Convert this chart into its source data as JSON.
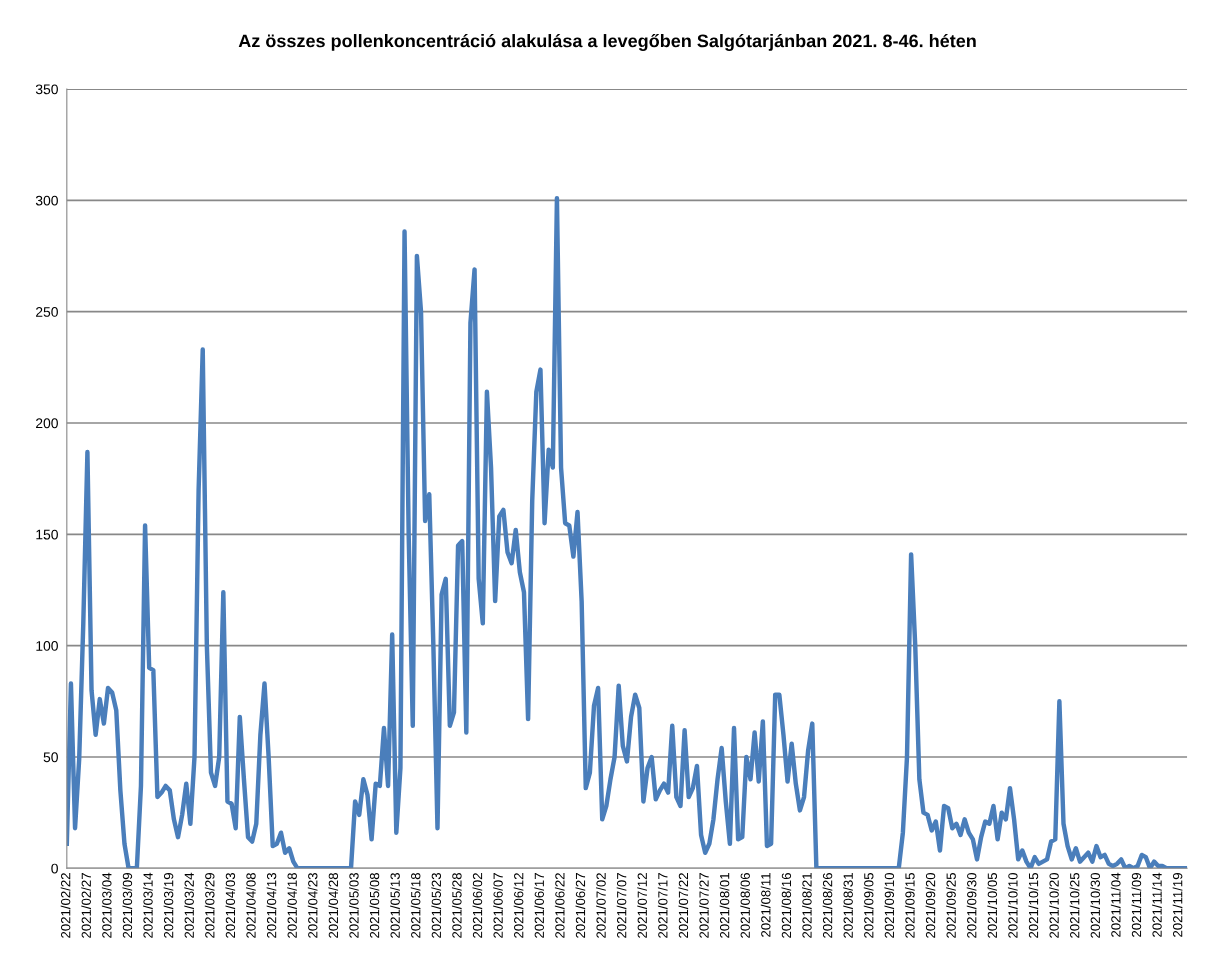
{
  "chart_data": {
    "type": "line",
    "title": "Az összes pollenkoncentráció alakulása a levegőben Salgótarjánban 2021. 8-46. héten",
    "xlim": [
      "2021-02-22",
      "2021-11-21"
    ],
    "ylim": [
      0,
      350
    ],
    "yticks": [
      0,
      50,
      100,
      150,
      200,
      250,
      300,
      350
    ],
    "grid": "y",
    "legend": false,
    "marker": "none",
    "line_style": "solid",
    "xticks": [
      {
        "value": "2021-02-22",
        "label": "2021/02/22"
      },
      {
        "value": "2021-02-27",
        "label": "2021/02/27"
      },
      {
        "value": "2021-03-04",
        "label": "2021/03/04"
      },
      {
        "value": "2021-03-09",
        "label": "2021/03/09"
      },
      {
        "value": "2021-03-14",
        "label": "2021/03/14"
      },
      {
        "value": "2021-03-19",
        "label": "2021/03/19"
      },
      {
        "value": "2021-03-24",
        "label": "2021/03/24"
      },
      {
        "value": "2021-03-29",
        "label": "2021/03/29"
      },
      {
        "value": "2021-04-03",
        "label": "2021/04/03"
      },
      {
        "value": "2021-04-08",
        "label": "2021/04/08"
      },
      {
        "value": "2021-04-13",
        "label": "2021/04/13"
      },
      {
        "value": "2021-04-18",
        "label": "2021/04/18"
      },
      {
        "value": "2021-04-23",
        "label": "2021/04/23"
      },
      {
        "value": "2021-04-28",
        "label": "2021/04/28"
      },
      {
        "value": "2021-05-03",
        "label": "2021/05/03"
      },
      {
        "value": "2021-05-08",
        "label": "2021/05/08"
      },
      {
        "value": "2021-05-13",
        "label": "2021/05/13"
      },
      {
        "value": "2021-05-18",
        "label": "2021/05/18"
      },
      {
        "value": "2021-05-23",
        "label": "2021/05/23"
      },
      {
        "value": "2021-05-28",
        "label": "2021/05/28"
      },
      {
        "value": "2021-06-02",
        "label": "2021/06/02"
      },
      {
        "value": "2021-06-07",
        "label": "2021/06/07"
      },
      {
        "value": "2021-06-12",
        "label": "2021/06/12"
      },
      {
        "value": "2021-06-17",
        "label": "2021/06/17"
      },
      {
        "value": "2021-06-22",
        "label": "2021/06/22"
      },
      {
        "value": "2021-06-27",
        "label": "2021/06/27"
      },
      {
        "value": "2021-07-02",
        "label": "2021/07/02"
      },
      {
        "value": "2021-07-07",
        "label": "2021/07/07"
      },
      {
        "value": "2021-07-12",
        "label": "2021/07/12"
      },
      {
        "value": "2021-07-17",
        "label": "2021/07/17"
      },
      {
        "value": "2021-07-22",
        "label": "2021/07/22"
      },
      {
        "value": "2021-07-27",
        "label": "2021/07/27"
      },
      {
        "value": "2021-08-01",
        "label": "2021/08/01"
      },
      {
        "value": "2021-08-06",
        "label": "2021/08/06"
      },
      {
        "value": "2021-08-11",
        "label": "2021/08/11"
      },
      {
        "value": "2021-08-16",
        "label": "2021/08/16"
      },
      {
        "value": "2021-08-21",
        "label": "2021/08/21"
      },
      {
        "value": "2021-08-26",
        "label": "2021/08/26"
      },
      {
        "value": "2021-08-31",
        "label": "2021/08/31"
      },
      {
        "value": "2021-09-05",
        "label": "2021/09/05"
      },
      {
        "value": "2021-09-10",
        "label": "2021/09/10"
      },
      {
        "value": "2021-09-15",
        "label": "2021/09/15"
      },
      {
        "value": "2021-09-20",
        "label": "2021/09/20"
      },
      {
        "value": "2021-09-25",
        "label": "2021/09/25"
      },
      {
        "value": "2021-09-30",
        "label": "2021/09/30"
      },
      {
        "value": "2021-10-05",
        "label": "2021/10/05"
      },
      {
        "value": "2021-10-10",
        "label": "2021/10/10"
      },
      {
        "value": "2021-10-15",
        "label": "2021/10/15"
      },
      {
        "value": "2021-10-20",
        "label": "2021/10/20"
      },
      {
        "value": "2021-10-25",
        "label": "2021/10/25"
      },
      {
        "value": "2021-10-30",
        "label": "2021/10/30"
      },
      {
        "value": "2021-11-04",
        "label": "2021/11/04"
      },
      {
        "value": "2021-11-09",
        "label": "2021/11/09"
      },
      {
        "value": "2021-11-14",
        "label": "2021/11/14"
      },
      {
        "value": "2021-11-19",
        "label": "2021/11/19"
      }
    ],
    "series": [
      {
        "color": "#4a7ebb",
        "x": [
          "2021-02-22",
          "2021-02-23",
          "2021-02-24",
          "2021-02-25",
          "2021-02-26",
          "2021-02-27",
          "2021-02-28",
          "2021-03-01",
          "2021-03-02",
          "2021-03-03",
          "2021-03-04",
          "2021-03-05",
          "2021-03-06",
          "2021-03-07",
          "2021-03-08",
          "2021-03-09",
          "2021-03-11",
          "2021-03-12",
          "2021-03-13",
          "2021-03-14",
          "2021-03-15",
          "2021-03-16",
          "2021-03-17",
          "2021-03-18",
          "2021-03-19",
          "2021-03-20",
          "2021-03-21",
          "2021-03-22",
          "2021-03-23",
          "2021-03-24",
          "2021-03-25",
          "2021-03-26",
          "2021-03-27",
          "2021-03-28",
          "2021-03-29",
          "2021-03-30",
          "2021-03-31",
          "2021-04-01",
          "2021-04-02",
          "2021-04-03",
          "2021-04-04",
          "2021-04-05",
          "2021-04-06",
          "2021-04-07",
          "2021-04-08",
          "2021-04-09",
          "2021-04-10",
          "2021-04-11",
          "2021-04-12",
          "2021-04-13",
          "2021-04-14",
          "2021-04-15",
          "2021-04-16",
          "2021-04-17",
          "2021-04-18",
          "2021-04-19",
          "2021-05-02",
          "2021-05-03",
          "2021-05-04",
          "2021-05-05",
          "2021-05-06",
          "2021-05-07",
          "2021-05-08",
          "2021-05-09",
          "2021-05-10",
          "2021-05-11",
          "2021-05-12",
          "2021-05-13",
          "2021-05-14",
          "2021-05-15",
          "2021-05-16",
          "2021-05-17",
          "2021-05-18",
          "2021-05-19",
          "2021-05-20",
          "2021-05-21",
          "2021-05-22",
          "2021-05-23",
          "2021-05-24",
          "2021-05-25",
          "2021-05-26",
          "2021-05-27",
          "2021-05-28",
          "2021-05-29",
          "2021-05-30",
          "2021-05-31",
          "2021-06-01",
          "2021-06-02",
          "2021-06-03",
          "2021-06-04",
          "2021-06-05",
          "2021-06-06",
          "2021-06-07",
          "2021-06-08",
          "2021-06-09",
          "2021-06-10",
          "2021-06-11",
          "2021-06-12",
          "2021-06-13",
          "2021-06-14",
          "2021-06-15",
          "2021-06-16",
          "2021-06-17",
          "2021-06-18",
          "2021-06-19",
          "2021-06-20",
          "2021-06-21",
          "2021-06-22",
          "2021-06-23",
          "2021-06-24",
          "2021-06-25",
          "2021-06-26",
          "2021-06-27",
          "2021-06-28",
          "2021-06-29",
          "2021-06-30",
          "2021-07-01",
          "2021-07-02",
          "2021-07-03",
          "2021-07-04",
          "2021-07-05",
          "2021-07-06",
          "2021-07-07",
          "2021-07-08",
          "2021-07-09",
          "2021-07-10",
          "2021-07-11",
          "2021-07-12",
          "2021-07-13",
          "2021-07-14",
          "2021-07-15",
          "2021-07-16",
          "2021-07-17",
          "2021-07-18",
          "2021-07-19",
          "2021-07-20",
          "2021-07-21",
          "2021-07-22",
          "2021-07-23",
          "2021-07-24",
          "2021-07-25",
          "2021-07-26",
          "2021-07-27",
          "2021-07-28",
          "2021-07-29",
          "2021-07-30",
          "2021-07-31",
          "2021-08-01",
          "2021-08-02",
          "2021-08-03",
          "2021-08-04",
          "2021-08-05",
          "2021-08-06",
          "2021-08-07",
          "2021-08-08",
          "2021-08-09",
          "2021-08-10",
          "2021-08-11",
          "2021-08-12",
          "2021-08-13",
          "2021-08-14",
          "2021-08-15",
          "2021-08-16",
          "2021-08-17",
          "2021-08-18",
          "2021-08-19",
          "2021-08-20",
          "2021-08-21",
          "2021-08-22",
          "2021-08-23",
          "2021-09-12",
          "2021-09-13",
          "2021-09-14",
          "2021-09-15",
          "2021-09-16",
          "2021-09-17",
          "2021-09-18",
          "2021-09-19",
          "2021-09-20",
          "2021-09-21",
          "2021-09-22",
          "2021-09-23",
          "2021-09-24",
          "2021-09-25",
          "2021-09-26",
          "2021-09-27",
          "2021-09-28",
          "2021-09-29",
          "2021-09-30",
          "2021-10-01",
          "2021-10-02",
          "2021-10-03",
          "2021-10-04",
          "2021-10-05",
          "2021-10-06",
          "2021-10-07",
          "2021-10-08",
          "2021-10-09",
          "2021-10-10",
          "2021-10-11",
          "2021-10-12",
          "2021-10-13",
          "2021-10-14",
          "2021-10-15",
          "2021-10-16",
          "2021-10-17",
          "2021-10-18",
          "2021-10-19",
          "2021-10-20",
          "2021-10-21",
          "2021-10-22",
          "2021-10-23",
          "2021-10-24",
          "2021-10-25",
          "2021-10-26",
          "2021-10-27",
          "2021-10-28",
          "2021-10-29",
          "2021-10-30",
          "2021-10-31",
          "2021-11-01",
          "2021-11-02",
          "2021-11-03",
          "2021-11-04",
          "2021-11-05",
          "2021-11-06",
          "2021-11-07",
          "2021-11-08",
          "2021-11-09",
          "2021-11-10",
          "2021-11-11",
          "2021-11-12",
          "2021-11-13",
          "2021-11-14",
          "2021-11-15",
          "2021-11-16",
          "2021-11-21"
        ],
        "values": [
          11,
          83,
          18,
          49,
          110,
          187,
          80,
          60,
          76,
          65,
          81,
          79,
          71,
          35,
          11,
          0,
          0,
          37,
          154,
          90,
          89,
          32,
          34,
          37,
          35,
          22,
          14,
          24,
          38,
          20,
          50,
          170,
          233,
          100,
          43,
          37,
          50,
          124,
          30,
          29,
          18,
          68,
          40,
          14,
          12,
          20,
          60,
          83,
          50,
          10,
          11,
          16,
          7,
          9,
          3,
          0,
          0,
          30,
          24,
          40,
          33,
          13,
          38,
          37,
          63,
          37,
          105,
          16,
          45,
          286,
          150,
          64,
          275,
          250,
          156,
          168,
          100,
          18,
          123,
          130,
          64,
          70,
          145,
          147,
          61,
          245,
          269,
          130,
          110,
          214,
          180,
          120,
          158,
          161,
          142,
          137,
          152,
          133,
          124,
          67,
          165,
          214,
          224,
          155,
          188,
          180,
          301,
          180,
          155,
          154,
          140,
          160,
          120,
          36,
          43,
          73,
          81,
          22,
          28,
          40,
          50,
          82,
          55,
          48,
          68,
          78,
          72,
          30,
          45,
          50,
          31,
          35,
          38,
          34,
          64,
          32,
          28,
          62,
          32,
          36,
          46,
          15,
          7,
          11,
          22,
          40,
          54,
          30,
          11,
          63,
          13,
          14,
          50,
          40,
          61,
          39,
          66,
          10,
          11,
          78,
          78,
          60,
          39,
          56,
          38,
          26,
          32,
          53,
          65,
          0,
          0,
          16,
          50,
          141,
          100,
          40,
          25,
          24,
          17,
          21,
          8,
          28,
          27,
          18,
          20,
          15,
          22,
          16,
          13,
          4,
          14,
          21,
          20,
          28,
          13,
          25,
          22,
          36,
          22,
          4,
          8,
          3,
          0,
          5,
          2,
          3,
          4,
          12,
          13,
          75,
          20,
          10,
          4,
          9,
          3,
          5,
          7,
          3,
          10,
          5,
          6,
          2,
          1,
          2,
          4,
          0,
          1,
          0,
          1,
          6,
          5,
          0,
          3,
          1,
          1,
          0,
          0
        ]
      }
    ]
  }
}
